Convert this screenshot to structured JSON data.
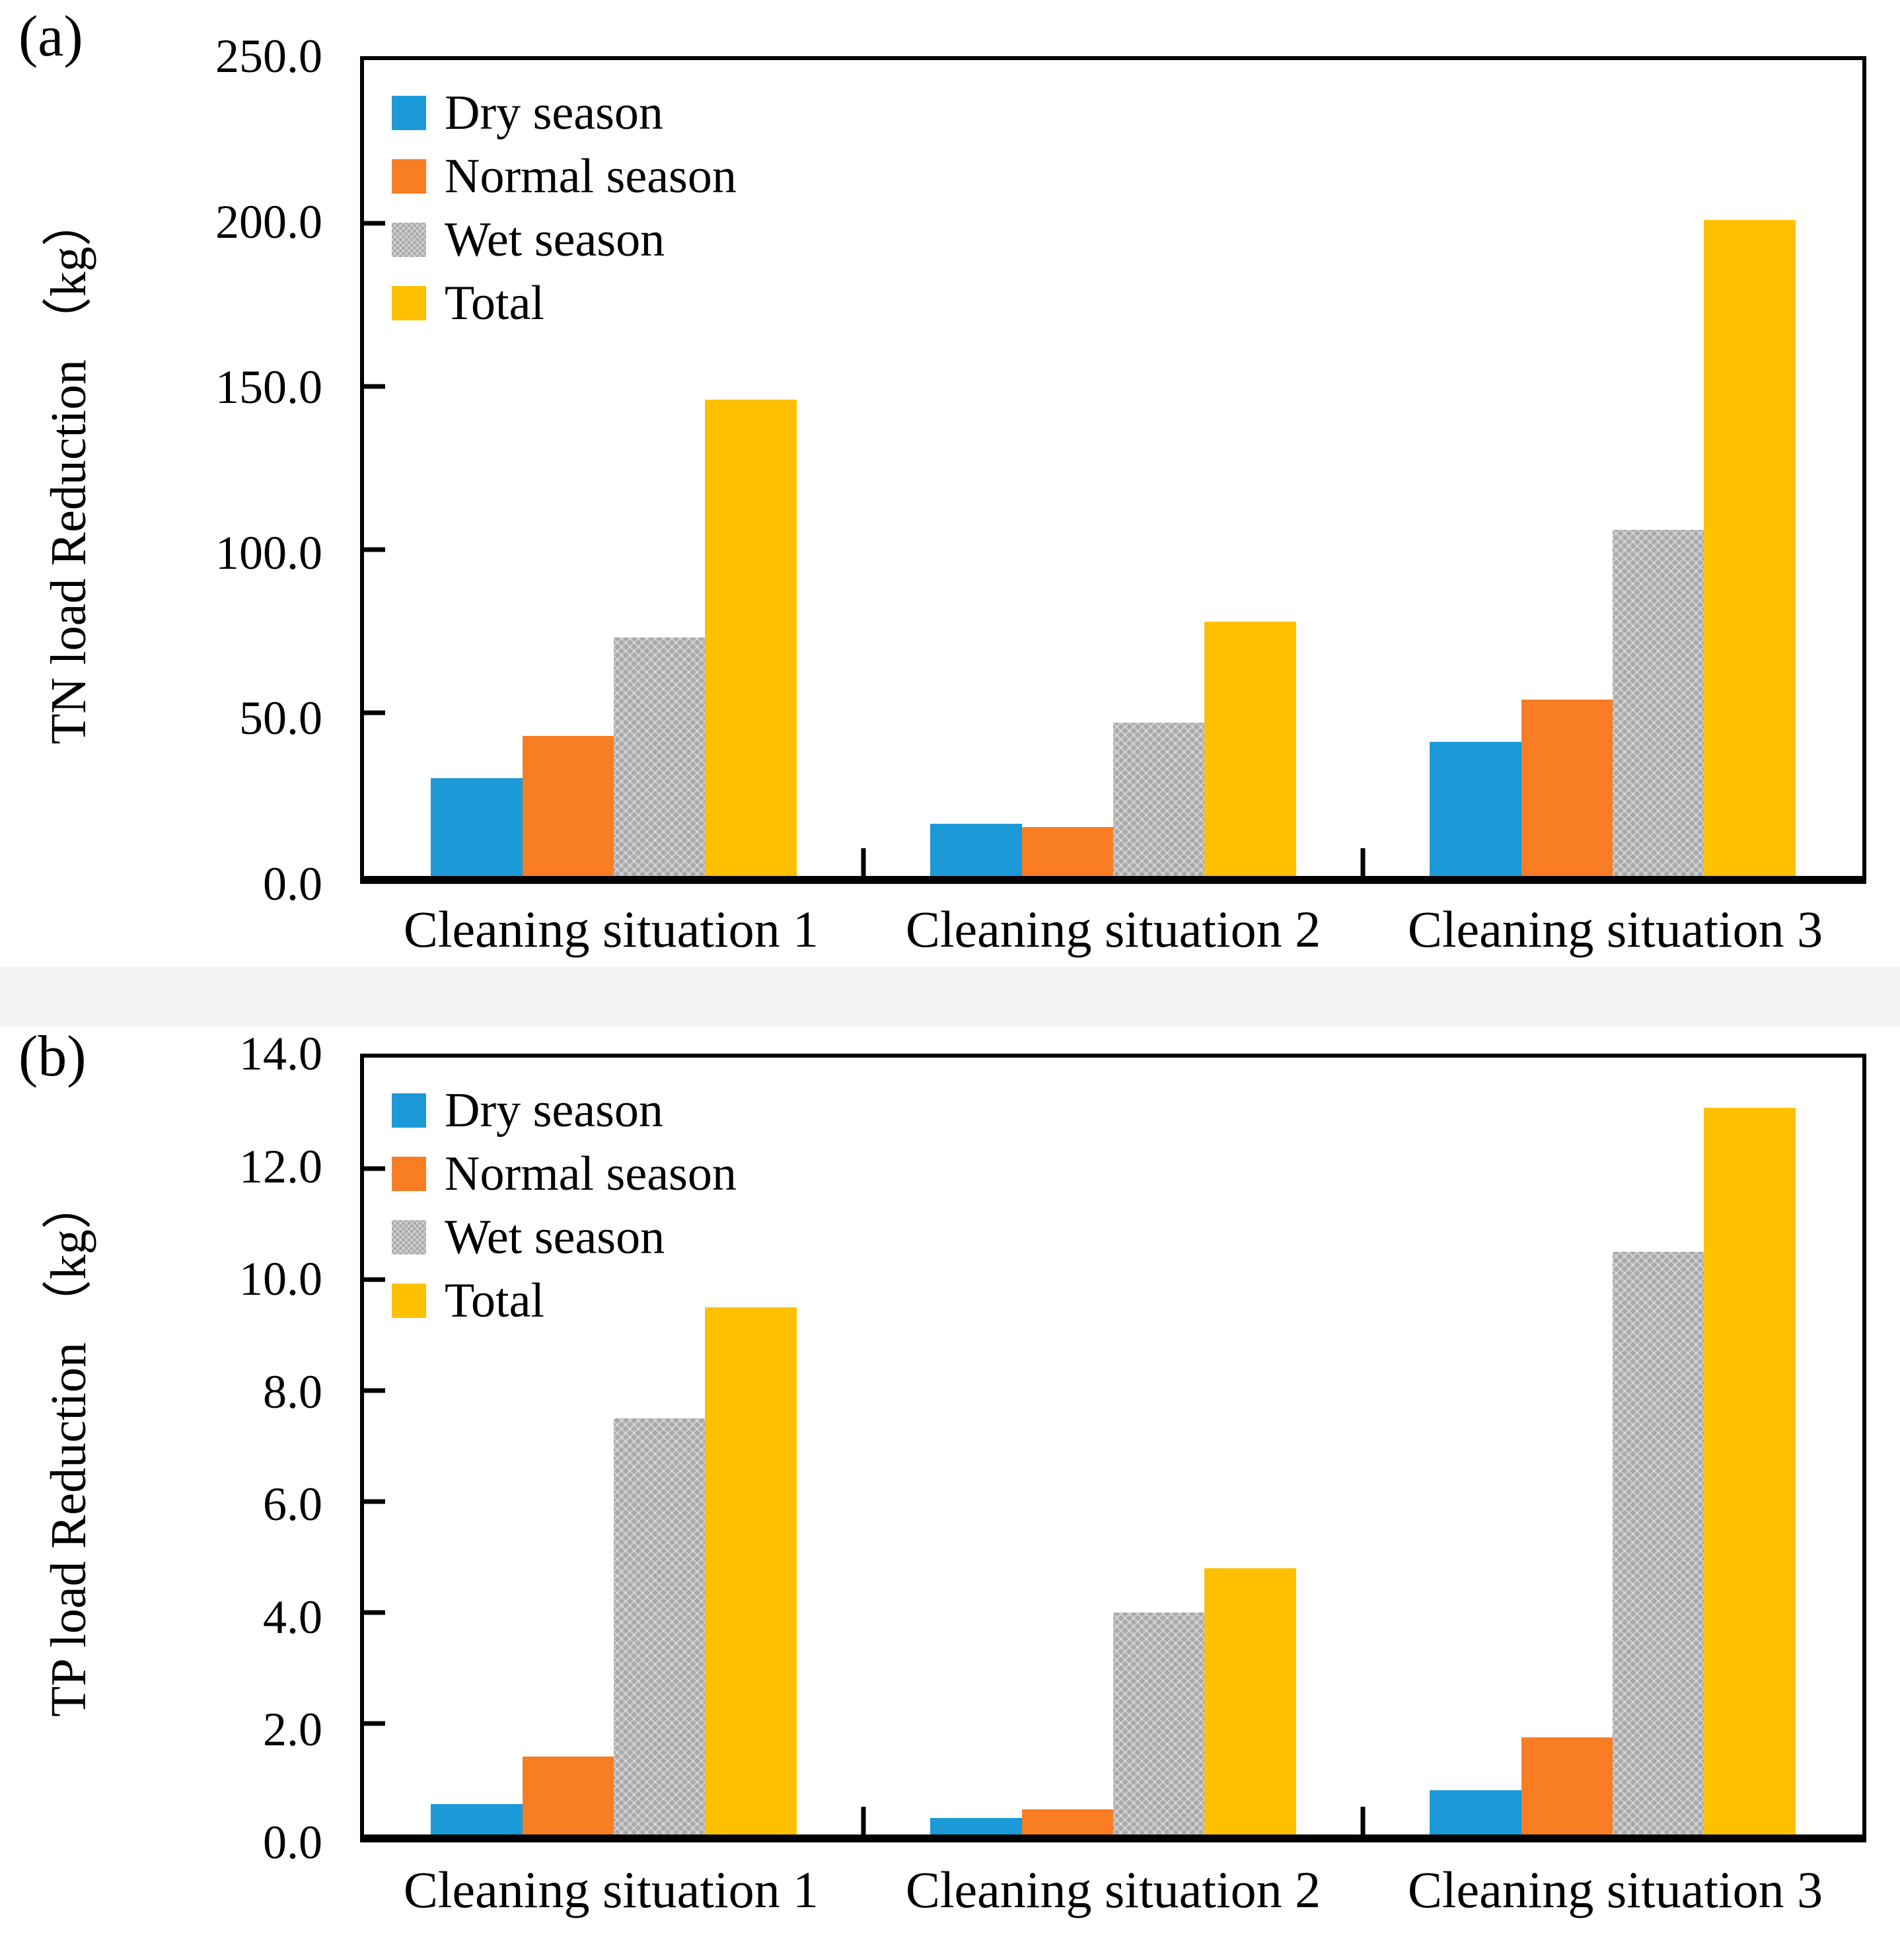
{
  "figure": {
    "band_color": "#f6f3f4",
    "axis_color": "#000000"
  },
  "chart_data": [
    {
      "id": "a",
      "type": "bar",
      "panel_label": "(a)",
      "ylabel": "TN load Reduction （kg）",
      "xlabel": "",
      "ylim": [
        0,
        250
      ],
      "ytick_step": 50,
      "ytick_labels": [
        "0.0",
        "50.0",
        "100.0",
        "150.0",
        "200.0",
        "250.0"
      ],
      "categories": [
        "Cleaning situation 1",
        "Cleaning situation 2",
        "Cleaning situation 3"
      ],
      "series": [
        {
          "name": "Dry season",
          "color": "#1B9AD7",
          "pattern": false,
          "values": [
            30,
            16,
            41
          ]
        },
        {
          "name": "Normal season",
          "color": "#F97D23",
          "pattern": false,
          "values": [
            43,
            15,
            54
          ]
        },
        {
          "name": "Wet season",
          "color": "#A8A8A8",
          "pattern": true,
          "values": [
            73,
            47,
            106
          ]
        },
        {
          "name": "Total",
          "color": "#FFC000",
          "pattern": false,
          "values": [
            146,
            78,
            201
          ]
        }
      ],
      "legend_position": "top-left",
      "grid": false
    },
    {
      "id": "b",
      "type": "bar",
      "panel_label": "(b)",
      "ylabel": "TP load Reduction （kg）",
      "xlabel": "",
      "ylim": [
        0,
        14
      ],
      "ytick_step": 2,
      "ytick_labels": [
        "0.0",
        "2.0",
        "4.0",
        "6.0",
        "8.0",
        "10.0",
        "12.0",
        "14.0"
      ],
      "categories": [
        "Cleaning situation 1",
        "Cleaning situation 2",
        "Cleaning situation 3"
      ],
      "series": [
        {
          "name": "Dry season",
          "color": "#1B9AD7",
          "pattern": false,
          "values": [
            0.55,
            0.3,
            0.8
          ]
        },
        {
          "name": "Normal season",
          "color": "#F97D23",
          "pattern": false,
          "values": [
            1.4,
            0.45,
            1.75
          ]
        },
        {
          "name": "Wet season",
          "color": "#A8A8A8",
          "pattern": true,
          "values": [
            7.5,
            4.0,
            10.5
          ]
        },
        {
          "name": "Total",
          "color": "#FFC000",
          "pattern": false,
          "values": [
            9.5,
            4.8,
            13.1
          ]
        }
      ],
      "legend_position": "top-left",
      "grid": false
    }
  ]
}
